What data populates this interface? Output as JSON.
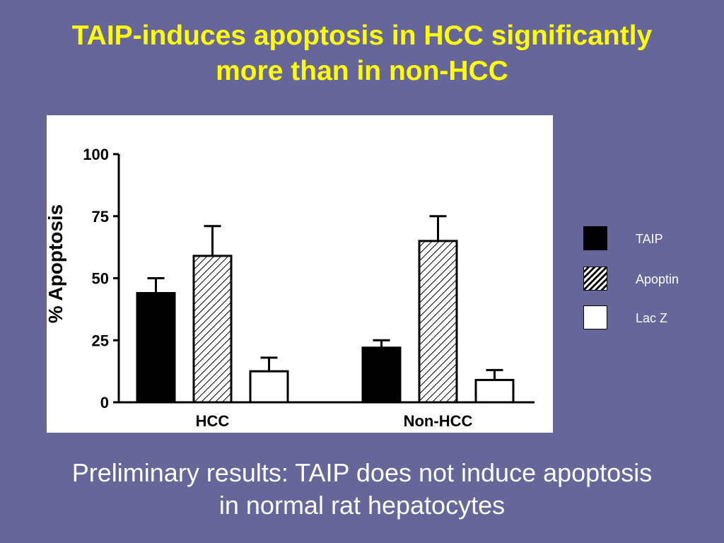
{
  "slide": {
    "title_line1": "TAIP-induces apoptosis in HCC significantly",
    "title_line2": "more than in non-HCC",
    "caption_line1": "Preliminary results: TAIP does not induce apoptosis",
    "caption_line2": "in normal rat hepatocytes"
  },
  "chart_data": {
    "type": "bar",
    "title": "",
    "xlabel": "",
    "ylabel": "% Apoptosis",
    "ylim": [
      0,
      100
    ],
    "yticks": [
      0,
      25,
      50,
      75,
      100
    ],
    "categories": [
      "HCC",
      "Non-HCC"
    ],
    "series": [
      {
        "name": "TAIP",
        "values": [
          44,
          22
        ],
        "errors": [
          6,
          3
        ],
        "color": "#000000",
        "fill": "solid"
      },
      {
        "name": "Apoptin",
        "values": [
          59,
          65
        ],
        "errors": [
          12,
          10
        ],
        "color": "#000000",
        "fill": "hatched"
      },
      {
        "name": "Lac Z",
        "values": [
          12.5,
          9
        ],
        "errors": [
          5.5,
          4
        ],
        "color": "#ffffff",
        "fill": "none"
      }
    ],
    "legend_position": "right",
    "grid": false
  },
  "colors": {
    "background": "#66669a",
    "title": "#ffff00",
    "text": "#ffffff"
  }
}
